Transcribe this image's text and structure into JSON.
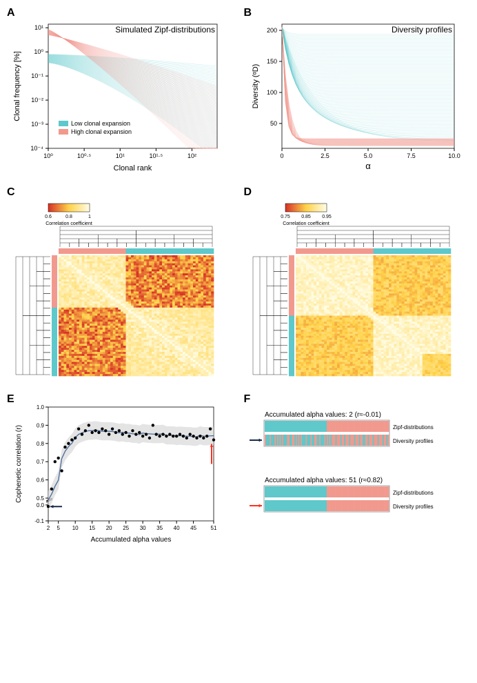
{
  "colors": {
    "low": "#5ec8ca",
    "high": "#f2998e",
    "axis": "#000000",
    "grey_band": "#d9d9d9",
    "line_blue": "#4a6a9a",
    "heat_low": "#fffde6",
    "heat_mid": "#ffd24a",
    "heat_high": "#d62f26",
    "arrow_blue": "#1a2a4a",
    "arrow_red": "#ff3020"
  },
  "panelA": {
    "label": "A",
    "title": "Simulated Zipf-distributions",
    "xlabel": "Clonal rank",
    "ylabel": "Clonal frequency [%]",
    "xticks": [
      "10⁰",
      "10⁰·⁵",
      "10¹",
      "10¹·⁵",
      "10²"
    ],
    "yticks": [
      "10⁻⁴",
      "10⁻³",
      "10⁻²",
      "10⁻¹",
      "10⁰",
      "10¹"
    ],
    "legend": {
      "low": "Low clonal expansion",
      "high": "High clonal expansion"
    }
  },
  "panelB": {
    "label": "B",
    "title": "Diversity profiles",
    "xlabel": "α",
    "ylabel": "Diversity (ᵅD)",
    "xticks": [
      "0",
      "2.5",
      "5.0",
      "7.5",
      "10.0"
    ],
    "yticks": [
      "50",
      "100",
      "150",
      "200"
    ]
  },
  "panelC": {
    "label": "C",
    "colorbar_label": "Correlation coefficient",
    "colorbar_ticks": [
      "0.6",
      "0.8",
      "1"
    ]
  },
  "panelD": {
    "label": "D",
    "colorbar_label": "Correlation coefficient",
    "colorbar_ticks": [
      "0.75",
      "0.85",
      "0.95"
    ]
  },
  "panelE": {
    "label": "E",
    "xlabel": "Accumulated alpha values",
    "ylabel": "Cophenetic correlation (r)",
    "xticks": [
      "2",
      "5",
      "10",
      "15",
      "20",
      "25",
      "30",
      "35",
      "40",
      "45",
      "51"
    ],
    "yticks": [
      "-0.1",
      "0.0",
      "0.5",
      "0.6",
      "0.7",
      "0.8",
      "0.9",
      "1.0"
    ],
    "points": [
      [
        2,
        -0.01
      ],
      [
        3,
        0.55
      ],
      [
        4,
        0.7
      ],
      [
        5,
        0.72
      ],
      [
        6,
        0.65
      ],
      [
        7,
        0.78
      ],
      [
        8,
        0.8
      ],
      [
        9,
        0.82
      ],
      [
        10,
        0.83
      ],
      [
        11,
        0.88
      ],
      [
        12,
        0.85
      ],
      [
        13,
        0.87
      ],
      [
        14,
        0.9
      ],
      [
        15,
        0.86
      ],
      [
        16,
        0.87
      ],
      [
        17,
        0.86
      ],
      [
        18,
        0.88
      ],
      [
        19,
        0.87
      ],
      [
        20,
        0.85
      ],
      [
        21,
        0.88
      ],
      [
        22,
        0.86
      ],
      [
        23,
        0.87
      ],
      [
        24,
        0.85
      ],
      [
        25,
        0.86
      ],
      [
        26,
        0.84
      ],
      [
        27,
        0.87
      ],
      [
        28,
        0.85
      ],
      [
        29,
        0.86
      ],
      [
        30,
        0.84
      ],
      [
        31,
        0.85
      ],
      [
        32,
        0.83
      ],
      [
        33,
        0.9
      ],
      [
        34,
        0.85
      ],
      [
        35,
        0.84
      ],
      [
        36,
        0.85
      ],
      [
        37,
        0.84
      ],
      [
        38,
        0.85
      ],
      [
        39,
        0.84
      ],
      [
        40,
        0.84
      ],
      [
        41,
        0.85
      ],
      [
        42,
        0.84
      ],
      [
        43,
        0.83
      ],
      [
        44,
        0.85
      ],
      [
        45,
        0.84
      ],
      [
        46,
        0.83
      ],
      [
        47,
        0.84
      ],
      [
        48,
        0.83
      ],
      [
        49,
        0.84
      ],
      [
        50,
        0.88
      ],
      [
        51,
        0.82
      ]
    ]
  },
  "panelF": {
    "label": "F",
    "top_title": "Accumulated alpha values: 2 (r≈-0.01)",
    "bottom_title": "Accumulated alpha values: 51 (r≈0.82)",
    "row_labels": {
      "zipf": "Zipf-distributions",
      "div": "Diversity profiles"
    }
  }
}
